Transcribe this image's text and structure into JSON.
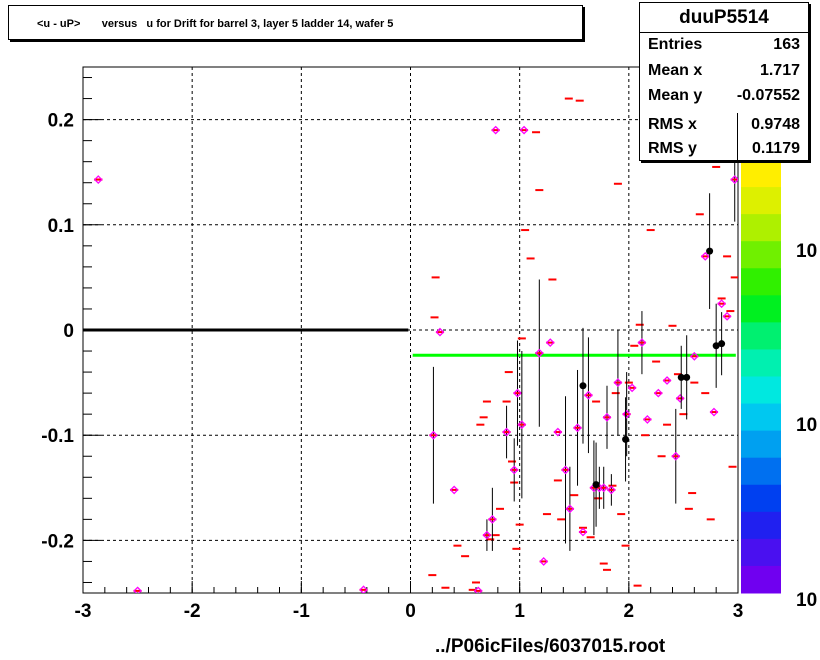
{
  "title": "<u - uP>       versus   u for Drift for barrel 3, layer 5 ladder 14, wafer 5",
  "stats": {
    "name": "duuP5514",
    "rows": [
      {
        "label": "Entries",
        "value": "163"
      },
      {
        "label": "Mean x",
        "value": "1.717"
      },
      {
        "label": "Mean y",
        "value": "-0.07552"
      },
      {
        "label": "RMS x",
        "value": "0.9748"
      },
      {
        "label": "RMS y",
        "value": "0.1179"
      }
    ]
  },
  "footer": "../P06icFiles/6037015.root",
  "colors": {
    "marker_red": "#ff0000",
    "marker_magenta": "#ff00ff",
    "fit_green": "#00ff00",
    "profile_black": "#000000"
  },
  "chart_data": {
    "type": "scatter",
    "xlim": [
      -3,
      3
    ],
    "ylim": [
      -0.25,
      0.25
    ],
    "xticks": [
      "-3",
      "-2",
      "-1",
      "0",
      "1",
      "2",
      "3"
    ],
    "yticks": [
      "-0.2",
      "-0.1",
      "0",
      "0.1",
      "0.2"
    ],
    "grid": true,
    "colorbar_labels": [
      "10",
      "10",
      "10"
    ],
    "scatter_points": [
      [
        -2.86,
        0.143
      ],
      [
        0.2,
        -0.233
      ],
      [
        0.23,
        0.05
      ],
      [
        0.22,
        0.012
      ],
      [
        0.32,
        -0.245
      ],
      [
        0.43,
        -0.205
      ],
      [
        0.5,
        -0.215
      ],
      [
        0.57,
        -0.247
      ],
      [
        0.6,
        -0.24
      ],
      [
        0.64,
        -0.09
      ],
      [
        0.67,
        -0.083
      ],
      [
        0.7,
        -0.068
      ],
      [
        0.73,
        -0.199
      ],
      [
        0.78,
        -0.195
      ],
      [
        0.82,
        -0.17
      ],
      [
        0.88,
        -0.068
      ],
      [
        0.9,
        -0.04
      ],
      [
        0.93,
        -0.125
      ],
      [
        0.95,
        -0.145
      ],
      [
        0.97,
        -0.208
      ],
      [
        1.0,
        -0.185
      ],
      [
        1.02,
        -0.008
      ],
      [
        1.05,
        0.095
      ],
      [
        1.1,
        0.068
      ],
      [
        1.15,
        0.188
      ],
      [
        1.18,
        0.133
      ],
      [
        1.25,
        -0.175
      ],
      [
        1.3,
        0.048
      ],
      [
        1.35,
        -0.143
      ],
      [
        1.38,
        -0.18
      ],
      [
        1.45,
        0.22
      ],
      [
        1.5,
        -0.157
      ],
      [
        1.55,
        0.218
      ],
      [
        1.58,
        -0.188
      ],
      [
        1.65,
        -0.197
      ],
      [
        1.7,
        -0.068
      ],
      [
        1.72,
        -0.16
      ],
      [
        1.77,
        -0.222
      ],
      [
        1.8,
        -0.228
      ],
      [
        1.85,
        -0.148
      ],
      [
        1.88,
        -0.06
      ],
      [
        1.9,
        0.139
      ],
      [
        1.93,
        -0.175
      ],
      [
        1.97,
        -0.205
      ],
      [
        2.0,
        -0.05
      ],
      [
        2.05,
        -0.015
      ],
      [
        2.08,
        -0.243
      ],
      [
        2.1,
        0.005
      ],
      [
        2.15,
        -0.1
      ],
      [
        2.2,
        0.095
      ],
      [
        2.25,
        -0.03
      ],
      [
        2.3,
        -0.12
      ],
      [
        2.35,
        -0.09
      ],
      [
        2.4,
        0.004
      ],
      [
        2.45,
        -0.042
      ],
      [
        2.5,
        -0.08
      ],
      [
        2.55,
        -0.17
      ],
      [
        2.58,
        -0.155
      ],
      [
        2.6,
        -0.05
      ],
      [
        2.65,
        0.11
      ],
      [
        2.7,
        -0.06
      ],
      [
        2.75,
        -0.18
      ],
      [
        2.8,
        0.155
      ],
      [
        2.85,
        0.03
      ],
      [
        2.9,
        0.07
      ],
      [
        2.93,
        0.018
      ],
      [
        2.95,
        -0.13
      ],
      [
        2.97,
        0.05
      ]
    ],
    "profile_points": [
      {
        "x": -2.86,
        "y": 0.143,
        "err": 0
      },
      {
        "x": -2.5,
        "y": -0.248,
        "err": 0
      },
      {
        "x": -0.43,
        "y": -0.247,
        "err": 0
      },
      {
        "x": 0.21,
        "y": -0.1,
        "err": 0.065
      },
      {
        "x": 0.27,
        "y": -0.002,
        "err": 0
      },
      {
        "x": 0.4,
        "y": -0.152,
        "err": 0
      },
      {
        "x": 0.62,
        "y": -0.248,
        "err": 0
      },
      {
        "x": 0.7,
        "y": -0.195,
        "err": 0.015
      },
      {
        "x": 0.75,
        "y": -0.18,
        "err": 0.03
      },
      {
        "x": 0.78,
        "y": 0.19,
        "err": 0
      },
      {
        "x": 0.88,
        "y": -0.097,
        "err": 0.025
      },
      {
        "x": 0.95,
        "y": -0.133,
        "err": 0.03
      },
      {
        "x": 0.98,
        "y": -0.06,
        "err": 0.05
      },
      {
        "x": 1.02,
        "y": -0.09,
        "err": 0.07
      },
      {
        "x": 1.04,
        "y": 0.19,
        "err": 0
      },
      {
        "x": 1.18,
        "y": -0.022,
        "err": 0.07
      },
      {
        "x": 1.22,
        "y": -0.22,
        "err": 0
      },
      {
        "x": 1.28,
        "y": -0.012,
        "err": 0
      },
      {
        "x": 1.35,
        "y": -0.097,
        "err": 0
      },
      {
        "x": 1.42,
        "y": -0.133,
        "err": 0.07
      },
      {
        "x": 1.46,
        "y": -0.17,
        "err": 0.04
      },
      {
        "x": 1.53,
        "y": -0.093,
        "err": 0.055
      },
      {
        "x": 1.58,
        "y": -0.192,
        "err": 0
      },
      {
        "x": 1.63,
        "y": -0.062,
        "err": 0.055
      },
      {
        "x": 1.68,
        "y": -0.15,
        "err": 0.045
      },
      {
        "x": 1.73,
        "y": -0.15,
        "err": 0.02
      },
      {
        "x": 1.77,
        "y": -0.15,
        "err": 0.02
      },
      {
        "x": 1.8,
        "y": -0.083,
        "err": 0.03
      },
      {
        "x": 1.84,
        "y": -0.152,
        "err": 0.015
      },
      {
        "x": 1.9,
        "y": -0.05,
        "err": 0.05
      },
      {
        "x": 1.98,
        "y": -0.08,
        "err": 0.04
      },
      {
        "x": 2.03,
        "y": -0.055,
        "err": 0
      },
      {
        "x": 2.12,
        "y": -0.012,
        "err": 0.03
      },
      {
        "x": 2.17,
        "y": -0.085,
        "err": 0
      },
      {
        "x": 2.27,
        "y": -0.06,
        "err": 0
      },
      {
        "x": 2.35,
        "y": -0.048,
        "err": 0
      },
      {
        "x": 2.43,
        "y": -0.12,
        "err": 0.045
      },
      {
        "x": 2.47,
        "y": -0.065,
        "err": 0
      },
      {
        "x": 2.6,
        "y": -0.025,
        "err": 0
      },
      {
        "x": 2.7,
        "y": 0.07,
        "err": 0
      },
      {
        "x": 2.78,
        "y": -0.078,
        "err": 0
      },
      {
        "x": 2.85,
        "y": 0.025,
        "err": 0
      },
      {
        "x": 2.9,
        "y": 0.013,
        "err": 0
      },
      {
        "x": 2.97,
        "y": 0.143,
        "err": 0.04
      }
    ],
    "black_points": [
      {
        "x": 1.58,
        "y": -0.053,
        "err": 0.055
      },
      {
        "x": 1.7,
        "y": -0.147,
        "err": 0.04
      },
      {
        "x": 1.97,
        "y": -0.104,
        "err": 0.04
      },
      {
        "x": 2.48,
        "y": -0.045,
        "err": 0.03
      },
      {
        "x": 2.53,
        "y": -0.045,
        "err": 0.04
      },
      {
        "x": 2.74,
        "y": 0.075,
        "err": 0.055
      },
      {
        "x": 2.8,
        "y": -0.015,
        "err": 0.04
      },
      {
        "x": 2.85,
        "y": -0.013,
        "err": 0.03
      }
    ],
    "fit_lines": [
      {
        "color": "black",
        "x": [
          -3,
          -0.02
        ],
        "y": [
          0.0,
          0.0
        ]
      },
      {
        "color": "green",
        "x": [
          0.02,
          2.98
        ],
        "y": [
          -0.024,
          -0.024
        ]
      }
    ]
  }
}
